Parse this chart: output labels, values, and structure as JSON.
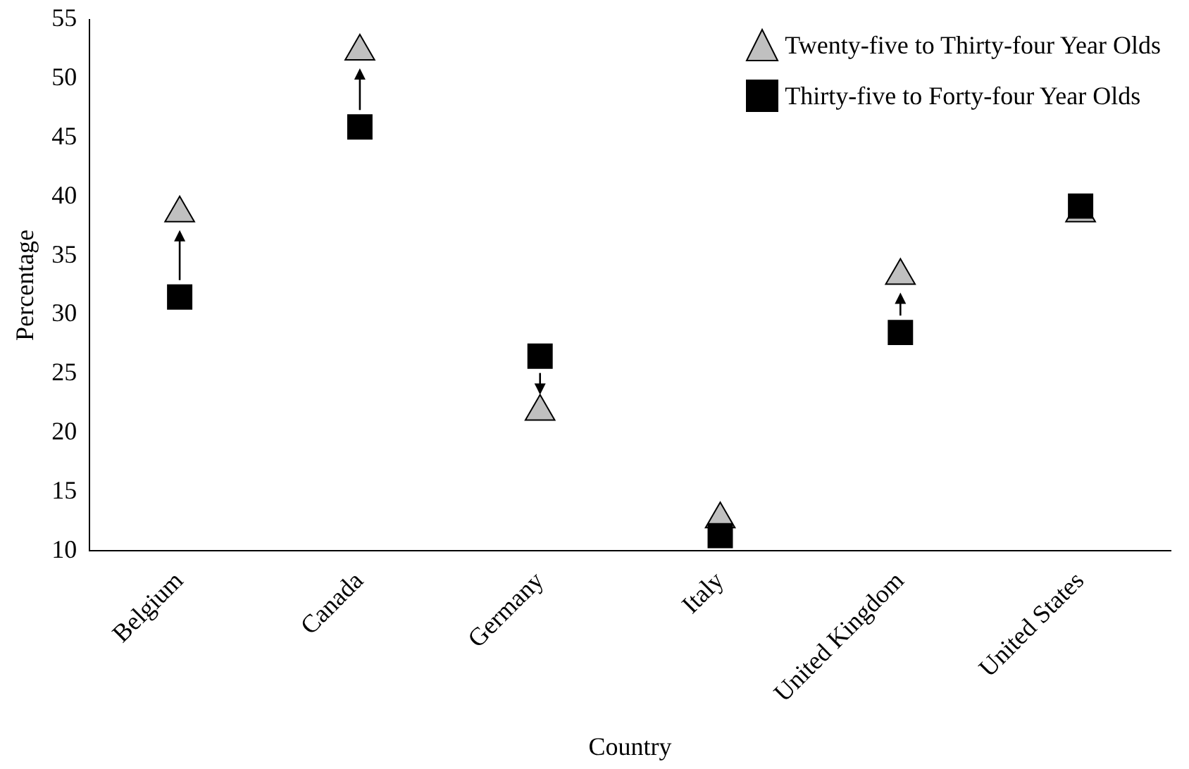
{
  "chart_data": {
    "type": "scatter",
    "xlabel": "Country",
    "ylabel": "Percentage",
    "categories": [
      "Belgium",
      "Canada",
      "Germany",
      "Italy",
      "United Kingdom",
      "United States"
    ],
    "series": [
      {
        "name": "Twenty-five to Thirty-four Year Olds",
        "color": "#c0c0c0",
        "marker": "triangle",
        "values": [
          38.6,
          52.3,
          21.8,
          12.7,
          33.3,
          38.6
        ]
      },
      {
        "name": "Thirty-five to Forty-four Year Olds",
        "color": "#000000",
        "marker": "square",
        "values": [
          31.5,
          45.9,
          26.5,
          11.3,
          28.5,
          39.2
        ]
      }
    ],
    "ylim": [
      10,
      55
    ],
    "yticks": [
      10,
      15,
      20,
      25,
      30,
      35,
      40,
      45,
      50,
      55
    ],
    "grid": false,
    "legend": "top right"
  }
}
